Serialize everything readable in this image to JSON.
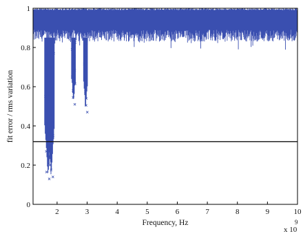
{
  "chart_data": {
    "type": "scatter",
    "title": "",
    "xlabel": "Frequency, Hz",
    "ylabel": "fit error / rms variation",
    "x_multiplier": "x 10",
    "x_multiplier_exponent": "9",
    "xlim": [
      1.2,
      10
    ],
    "ylim": [
      0,
      1
    ],
    "xticks": [
      2,
      3,
      4,
      5,
      6,
      7,
      8,
      9,
      10
    ],
    "yticks": [
      0,
      0.2,
      0.4,
      0.6,
      0.8,
      1
    ],
    "ytick_labels": [
      "0",
      "0.2",
      "0.4",
      "0.6",
      "0.8",
      "1"
    ],
    "grid": false,
    "series": [
      {
        "marker": "x",
        "color": "#3a4fb0",
        "description_values": {
          "dense_band": [
            0.85,
            1.0
          ],
          "dips": [
            {
              "x": 1.7,
              "min_y": 0.13
            },
            {
              "x": 1.8,
              "min_y": 0.14
            },
            {
              "x": 2.55,
              "min_y": 0.51
            },
            {
              "x": 2.95,
              "min_y": 0.47
            }
          ]
        }
      }
    ],
    "threshold_line": {
      "y": 0.32,
      "color": "#111111"
    }
  }
}
